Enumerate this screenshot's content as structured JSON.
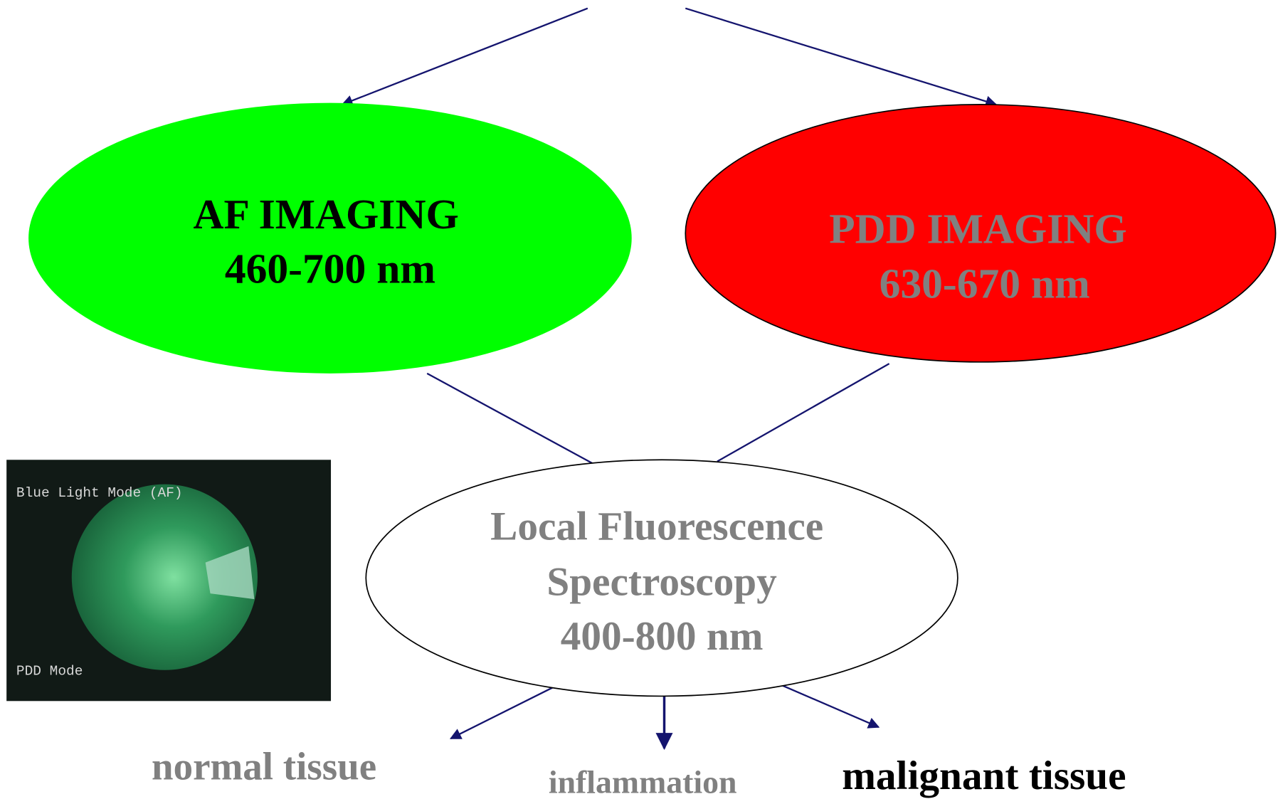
{
  "nodes": [
    {
      "lines": [
        "AF IMAGING",
        "460-700 nm"
      ]
    },
    {
      "lines": [
        "PDD IMAGING",
        "630-670 nm"
      ]
    },
    {
      "lines": [
        "Local Fluorescence",
        "Spectroscopy",
        "400-800 nm"
      ]
    }
  ],
  "photo": {
    "top_label": "Blue Light Mode (AF)",
    "bottom_label": "PDD Mode"
  },
  "outcomes": [
    "normal tissue",
    "inflammation",
    "malignant tissue"
  ]
}
